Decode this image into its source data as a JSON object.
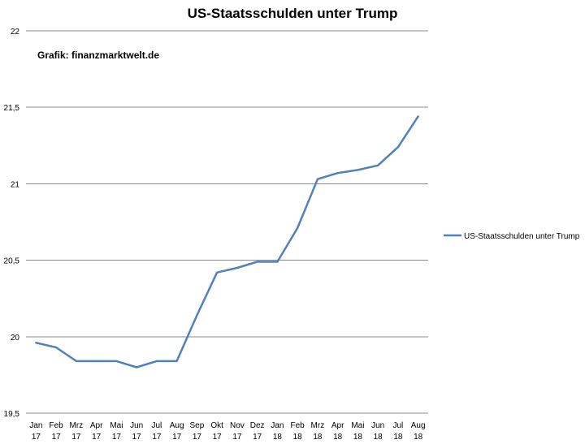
{
  "chart_data": {
    "type": "line",
    "title": "US-Staatsschulden unter Trump",
    "source_label": "Grafik: finanzmarktwelt.de",
    "categories": [
      [
        "Jan",
        "17"
      ],
      [
        "Feb",
        "17"
      ],
      [
        "Mrz",
        "17"
      ],
      [
        "Apr",
        "17"
      ],
      [
        "Mai",
        "17"
      ],
      [
        "Jun",
        "17"
      ],
      [
        "Jul",
        "17"
      ],
      [
        "Aug",
        "17"
      ],
      [
        "Sep",
        "17"
      ],
      [
        "Okt",
        "17"
      ],
      [
        "Nov",
        "17"
      ],
      [
        "Dez",
        "17"
      ],
      [
        "Jan",
        "18"
      ],
      [
        "Feb",
        "18"
      ],
      [
        "Mrz",
        "18"
      ],
      [
        "Apr",
        "18"
      ],
      [
        "Mai",
        "18"
      ],
      [
        "Jun",
        "18"
      ],
      [
        "Jul",
        "18"
      ],
      [
        "Aug",
        "18"
      ]
    ],
    "series": [
      {
        "name": "US-Staatsschulden unter Trump",
        "color": "#4f81bd",
        "values": [
          19.96,
          19.93,
          19.84,
          19.84,
          19.84,
          19.8,
          19.84,
          19.84,
          20.14,
          20.42,
          20.45,
          20.49,
          20.49,
          20.71,
          21.03,
          21.07,
          21.09,
          21.12,
          21.24,
          21.44
        ]
      }
    ],
    "y_ticks": [
      "19,5",
      "20",
      "20,5",
      "21",
      "21,5",
      "22"
    ],
    "ylim": [
      19.5,
      22
    ],
    "grid": true,
    "legend_position": "right",
    "xlabel": "",
    "ylabel": ""
  }
}
